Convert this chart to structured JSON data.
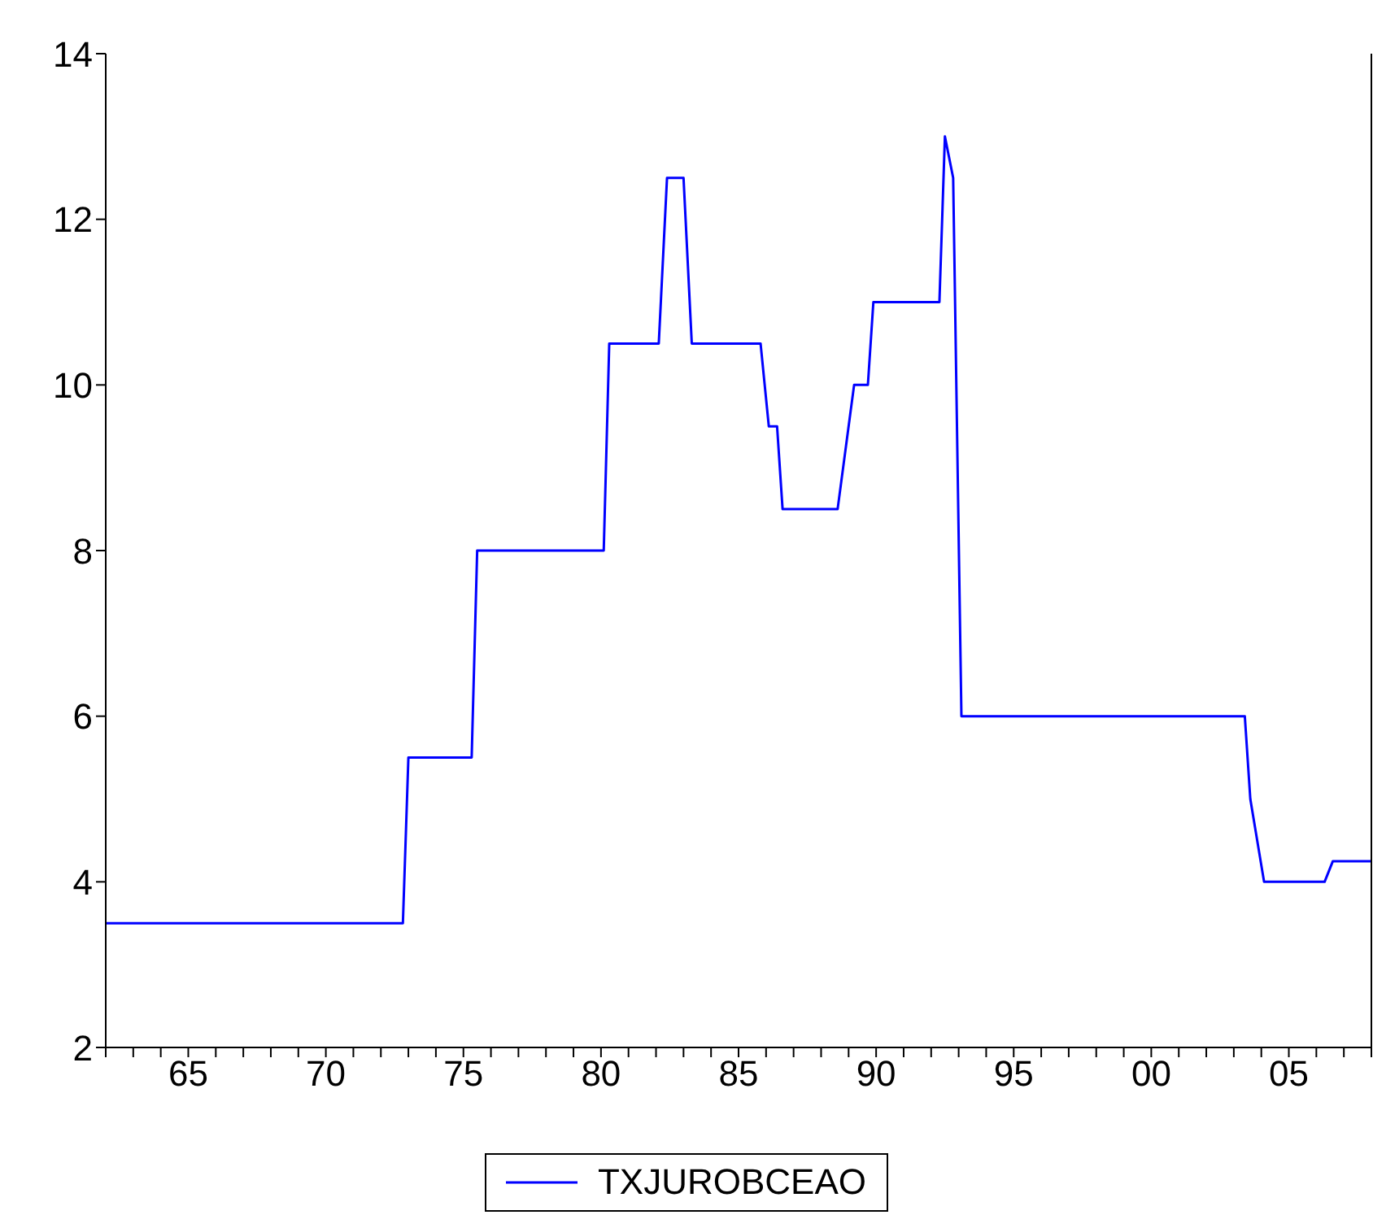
{
  "chart_data": {
    "type": "line",
    "ylim": [
      2,
      14
    ],
    "yticks": [
      2,
      4,
      6,
      8,
      10,
      12,
      14
    ],
    "xlim": [
      1962,
      2008
    ],
    "xticks": [
      {
        "value": 1962,
        "label": null
      },
      {
        "value": 1963,
        "label": null
      },
      {
        "value": 1964,
        "label": null
      },
      {
        "value": 1965,
        "label": "65"
      },
      {
        "value": 1966,
        "label": null
      },
      {
        "value": 1967,
        "label": null
      },
      {
        "value": 1968,
        "label": null
      },
      {
        "value": 1969,
        "label": null
      },
      {
        "value": 1970,
        "label": "70"
      },
      {
        "value": 1971,
        "label": null
      },
      {
        "value": 1972,
        "label": null
      },
      {
        "value": 1973,
        "label": null
      },
      {
        "value": 1974,
        "label": null
      },
      {
        "value": 1975,
        "label": "75"
      },
      {
        "value": 1976,
        "label": null
      },
      {
        "value": 1977,
        "label": null
      },
      {
        "value": 1978,
        "label": null
      },
      {
        "value": 1979,
        "label": null
      },
      {
        "value": 1980,
        "label": "80"
      },
      {
        "value": 1981,
        "label": null
      },
      {
        "value": 1982,
        "label": null
      },
      {
        "value": 1983,
        "label": null
      },
      {
        "value": 1984,
        "label": null
      },
      {
        "value": 1985,
        "label": "85"
      },
      {
        "value": 1986,
        "label": null
      },
      {
        "value": 1987,
        "label": null
      },
      {
        "value": 1988,
        "label": null
      },
      {
        "value": 1989,
        "label": null
      },
      {
        "value": 1990,
        "label": "90"
      },
      {
        "value": 1991,
        "label": null
      },
      {
        "value": 1992,
        "label": null
      },
      {
        "value": 1993,
        "label": null
      },
      {
        "value": 1994,
        "label": null
      },
      {
        "value": 1995,
        "label": "95"
      },
      {
        "value": 1996,
        "label": null
      },
      {
        "value": 1997,
        "label": null
      },
      {
        "value": 1998,
        "label": null
      },
      {
        "value": 1999,
        "label": null
      },
      {
        "value": 2000,
        "label": "00"
      },
      {
        "value": 2001,
        "label": null
      },
      {
        "value": 2002,
        "label": null
      },
      {
        "value": 2003,
        "label": null
      },
      {
        "value": 2004,
        "label": null
      },
      {
        "value": 2005,
        "label": "05"
      },
      {
        "value": 2006,
        "label": null
      },
      {
        "value": 2007,
        "label": null
      },
      {
        "value": 2008,
        "label": null
      }
    ],
    "grid": false,
    "legend": "bottom",
    "series": [
      {
        "name": "TXJUROBCEAO",
        "color": "#0000ff",
        "x": [
          1962,
          1972.8,
          1973.0,
          1975.3,
          1975.5,
          1980.1,
          1980.3,
          1982.1,
          1982.4,
          1983.0,
          1983.3,
          1985.8,
          1986.1,
          1986.4,
          1986.6,
          1988.6,
          1989.0,
          1989.2,
          1989.7,
          1989.9,
          1992.3,
          1992.5,
          1992.8,
          1993.1,
          2003.4,
          2003.6,
          2004.1,
          2006.3,
          2006.6,
          2008
        ],
        "values": [
          3.5,
          3.5,
          5.5,
          5.5,
          8,
          8,
          10.5,
          10.5,
          12.5,
          12.5,
          10.5,
          10.5,
          9.5,
          9.5,
          8.5,
          8.5,
          9.5,
          10,
          10,
          11,
          11,
          13,
          12.5,
          6,
          6,
          5,
          4,
          4,
          4.25,
          4.25
        ]
      }
    ]
  }
}
